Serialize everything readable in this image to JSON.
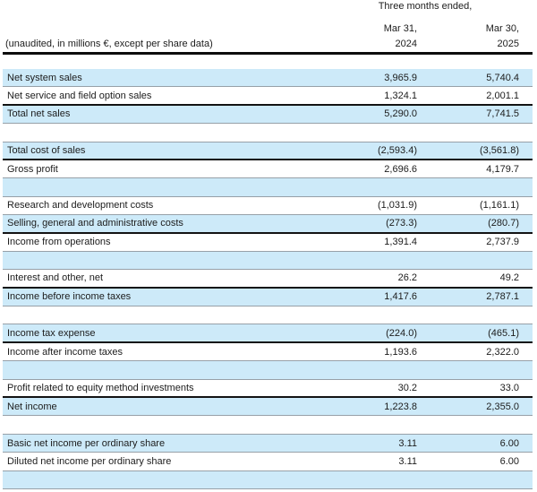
{
  "header": {
    "period_label": "Three months ended,",
    "col_2024": {
      "month": "Mar 31,",
      "year": "2024"
    },
    "col_2025": {
      "month": "Mar 30,",
      "year": "2025"
    },
    "caption": "(unaudited, in millions €, except per share data)"
  },
  "colors": {
    "row_highlight": "#cdeaf9",
    "thin_rule": "#97a0a8",
    "strong_rule": "#131313",
    "text": "#1c1c1c"
  },
  "rows": [
    {
      "label": "Net system sales",
      "v2024": "3,965.9",
      "v2025": "5,740.4",
      "shaded": true,
      "border_bottom": "thin"
    },
    {
      "label": "Net service and field option sales",
      "v2024": "1,324.1",
      "v2025": "2,001.1",
      "shaded": false,
      "border_bottom": "thick"
    },
    {
      "label": "Total net sales",
      "v2024": "5,290.0",
      "v2025": "7,741.5",
      "shaded": true,
      "border_bottom": "thin"
    },
    {
      "type": "spacer",
      "shaded": false,
      "border_bottom": "thin"
    },
    {
      "label": "Total cost of sales",
      "v2024": "(2,593.4)",
      "v2025": "(3,561.8)",
      "shaded": true,
      "border_bottom": "thick"
    },
    {
      "label": "Gross profit",
      "v2024": "2,696.6",
      "v2025": "4,179.7",
      "shaded": false,
      "border_bottom": "thin"
    },
    {
      "type": "spacer",
      "shaded": true,
      "border_bottom": "thin"
    },
    {
      "label": "Research and development costs",
      "v2024": "(1,031.9)",
      "v2025": "(1,161.1)",
      "shaded": false,
      "border_bottom": "thin"
    },
    {
      "label": "Selling, general and administrative costs",
      "v2024": "(273.3)",
      "v2025": "(280.7)",
      "shaded": true,
      "border_bottom": "thick"
    },
    {
      "label": "Income from operations",
      "v2024": "1,391.4",
      "v2025": "2,737.9",
      "shaded": false,
      "border_bottom": "thin"
    },
    {
      "type": "spacer",
      "shaded": true,
      "border_bottom": "thin"
    },
    {
      "label": "Interest and other, net",
      "v2024": "26.2",
      "v2025": "49.2",
      "shaded": false,
      "border_bottom": "thick"
    },
    {
      "label": "Income before income taxes",
      "v2024": "1,417.6",
      "v2025": "2,787.1",
      "shaded": true,
      "border_bottom": "thin"
    },
    {
      "type": "spacer",
      "shaded": false,
      "border_bottom": "thin"
    },
    {
      "label": "Income tax expense",
      "v2024": "(224.0)",
      "v2025": "(465.1)",
      "shaded": true,
      "border_bottom": "thick"
    },
    {
      "label": "Income after income taxes",
      "v2024": "1,193.6",
      "v2025": "2,322.0",
      "shaded": false,
      "border_bottom": "thin"
    },
    {
      "type": "spacer",
      "shaded": true,
      "border_bottom": "thin"
    },
    {
      "label": "Profit related to equity method investments",
      "v2024": "30.2",
      "v2025": "33.0",
      "shaded": false,
      "border_bottom": "thick"
    },
    {
      "label": "Net income",
      "v2024": "1,223.8",
      "v2025": "2,355.0",
      "shaded": true,
      "border_bottom": "thin"
    },
    {
      "type": "spacer",
      "shaded": false,
      "border_bottom": "thin"
    },
    {
      "label": "Basic net income per ordinary share",
      "v2024": "3.11",
      "v2025": "6.00",
      "shaded": true,
      "border_bottom": "thin"
    },
    {
      "label": "Diluted net income per ordinary share",
      "v2024": "3.11",
      "v2025": "6.00",
      "shaded": false,
      "border_bottom": "thin"
    },
    {
      "type": "spacer",
      "shaded": true,
      "border_bottom": "thin"
    }
  ]
}
